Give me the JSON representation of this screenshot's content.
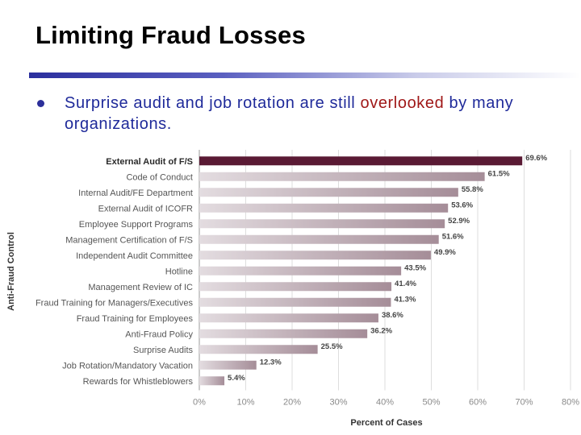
{
  "slide": {
    "title": "Limiting Fraud Losses",
    "bullet": {
      "before": "Surprise audit and job rotation are still ",
      "highlight": "overlooked",
      "after": " by many organizations."
    }
  },
  "chart_data": {
    "type": "bar",
    "orientation": "horizontal",
    "title": "",
    "xlabel": "Percent of Cases",
    "ylabel": "Anti-Fraud Control",
    "xlim": [
      0,
      80
    ],
    "xticks": [
      "0%",
      "10%",
      "20%",
      "30%",
      "40%",
      "50%",
      "60%",
      "70%",
      "80%"
    ],
    "grid": true,
    "categories": [
      "External Audit of F/S",
      "Code of Conduct",
      "Internal Audit/FE Department",
      "External Audit of ICOFR",
      "Employee Support Programs",
      "Management Certification of F/S",
      "Independent Audit Committee",
      "Hotline",
      "Management Review of IC",
      "Fraud Training for Managers/Executives",
      "Fraud Training for Employees",
      "Anti-Fraud Policy",
      "Surprise Audits",
      "Job Rotation/Mandatory Vacation",
      "Rewards for Whistleblowers"
    ],
    "values": [
      69.6,
      61.5,
      55.8,
      53.6,
      52.9,
      51.6,
      49.9,
      43.5,
      41.4,
      41.3,
      38.6,
      36.2,
      25.5,
      12.3,
      5.4
    ],
    "value_labels": [
      "69.6%",
      "61.5%",
      "55.8%",
      "53.6%",
      "52.9%",
      "51.6%",
      "49.9%",
      "43.5%",
      "41.4%",
      "41.3%",
      "38.6%",
      "36.2%",
      "25.5%",
      "12.3%",
      "5.4%"
    ],
    "colors": {
      "top_bar": "#5a1a34",
      "bar_light": "#e3dce0",
      "bar_dark": "#a58d98"
    }
  }
}
